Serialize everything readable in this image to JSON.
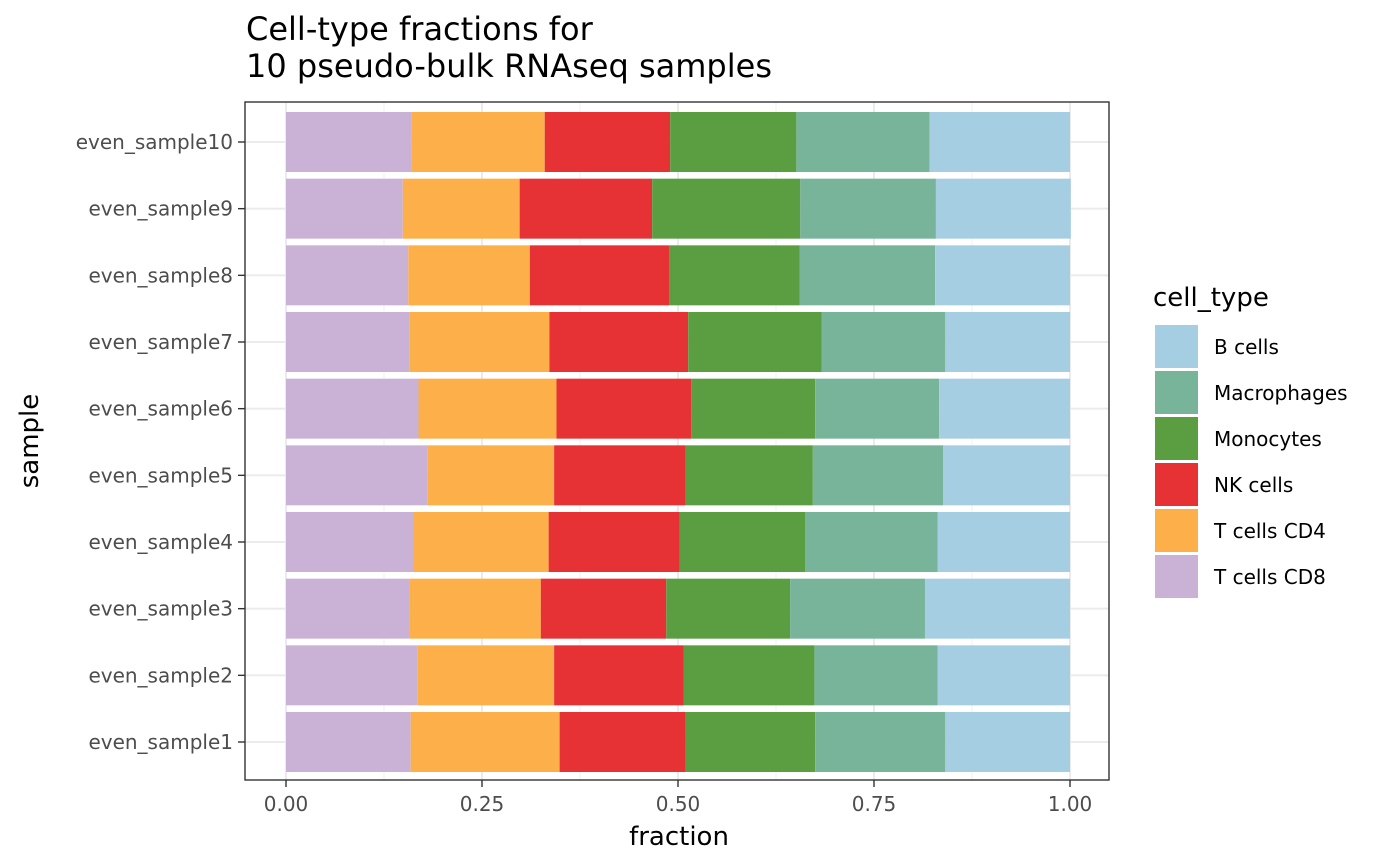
{
  "chart_data": {
    "type": "bar",
    "orientation": "horizontal",
    "stacked": true,
    "title": "Cell-type fractions for\n10 pseudo-bulk RNAseq samples",
    "xlabel": "fraction",
    "ylabel": "sample",
    "xlim": [
      0,
      1
    ],
    "x_ticks": [
      "0.00",
      "0.25",
      "0.50",
      "0.75",
      "1.00"
    ],
    "grid": true,
    "legend_position": "right",
    "legend_title": "cell_type",
    "categories": [
      "even_sample1",
      "even_sample2",
      "even_sample3",
      "even_sample4",
      "even_sample5",
      "even_sample6",
      "even_sample7",
      "even_sample8",
      "even_sample9",
      "even_sample10"
    ],
    "series": [
      {
        "name": "T cells CD8",
        "color": "#cab2d6",
        "values": [
          0.159,
          0.168,
          0.157,
          0.162,
          0.181,
          0.169,
          0.158,
          0.156,
          0.149,
          0.16
        ]
      },
      {
        "name": "T cells CD4",
        "color": "#fdb04a",
        "values": [
          0.19,
          0.174,
          0.168,
          0.173,
          0.161,
          0.176,
          0.178,
          0.155,
          0.149,
          0.17
        ]
      },
      {
        "name": "NK cells",
        "color": "#e63234",
        "values": [
          0.161,
          0.165,
          0.16,
          0.167,
          0.168,
          0.172,
          0.177,
          0.178,
          0.169,
          0.16
        ]
      },
      {
        "name": "Monocytes",
        "color": "#5b9e42",
        "values": [
          0.165,
          0.167,
          0.158,
          0.16,
          0.162,
          0.158,
          0.17,
          0.166,
          0.189,
          0.161
        ]
      },
      {
        "name": "Macrophages",
        "color": "#77b49a",
        "values": [
          0.166,
          0.157,
          0.172,
          0.169,
          0.166,
          0.158,
          0.158,
          0.173,
          0.173,
          0.17
        ]
      },
      {
        "name": "B cells",
        "color": "#a6cee3",
        "values": [
          0.159,
          0.169,
          0.185,
          0.169,
          0.162,
          0.167,
          0.159,
          0.172,
          0.172,
          0.179
        ]
      }
    ]
  }
}
